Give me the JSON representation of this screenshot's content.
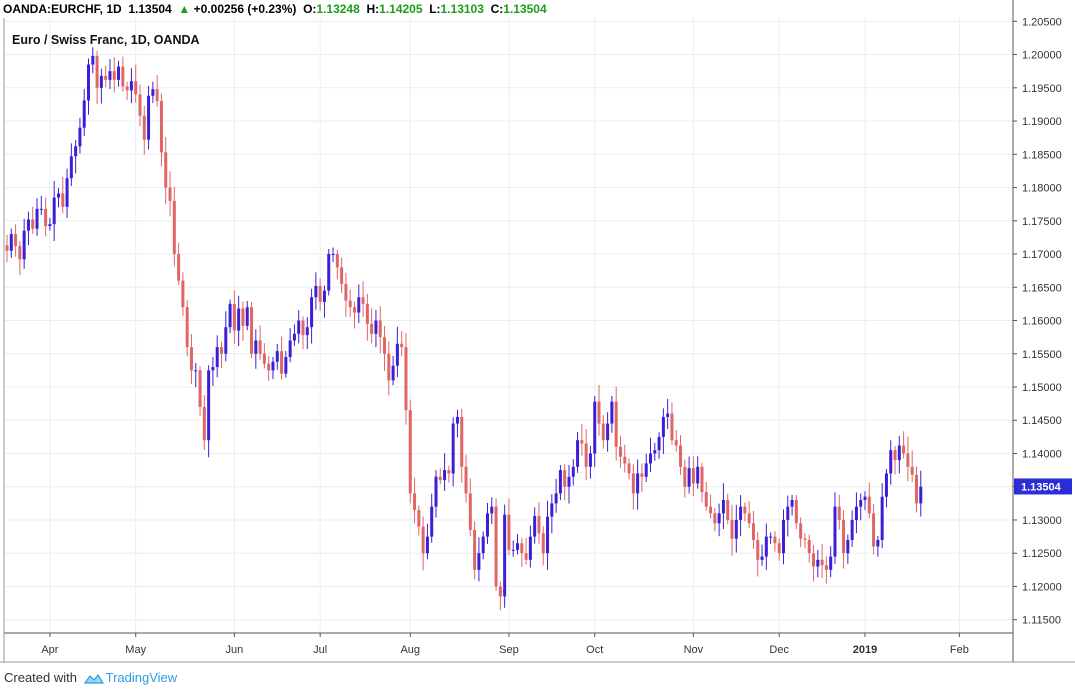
{
  "header": {
    "symbol": "OANDA:EURCHF, 1D",
    "last": "1.13504",
    "change": "+0.00256 (+0.23%)",
    "o_label": "O:",
    "o_value": "1.13248",
    "h_label": "H:",
    "h_value": "1.14205",
    "l_label": "L:",
    "l_value": "1.13103",
    "c_label": "C:",
    "c_value": "1.13504",
    "up_arrow_icon": "triangle-up-icon"
  },
  "footer": {
    "created_with": "Created with",
    "brand": "TradingView",
    "logo_icon": "tradingview-logo-icon"
  },
  "colors": {
    "up": "#3b1fd6",
    "down": "#e06666",
    "grid": "#e9eef3",
    "axis": "#555555",
    "last_price_bg": "#2b2dd8"
  },
  "chart_data": {
    "type": "candlestick",
    "title": "Euro / Swiss Franc, 1D, OANDA",
    "last_price_label": "1.13504",
    "ylim": [
      1.113,
      1.2055
    ],
    "y_ticks": [
      "1.20500",
      "1.20000",
      "1.19500",
      "1.19000",
      "1.18500",
      "1.18000",
      "1.17500",
      "1.17000",
      "1.16500",
      "1.16000",
      "1.15500",
      "1.15000",
      "1.14500",
      "1.14000",
      "1.13500",
      "1.13000",
      "1.12500",
      "1.12000",
      "1.11500"
    ],
    "x_ticks": [
      {
        "label": "Apr",
        "index": 10,
        "bold": false
      },
      {
        "label": "May",
        "index": 30,
        "bold": false
      },
      {
        "label": "Jun",
        "index": 53,
        "bold": false
      },
      {
        "label": "Jul",
        "index": 73,
        "bold": false
      },
      {
        "label": "Aug",
        "index": 94,
        "bold": false
      },
      {
        "label": "Sep",
        "index": 117,
        "bold": false
      },
      {
        "label": "Oct",
        "index": 137,
        "bold": false
      },
      {
        "label": "Nov",
        "index": 160,
        "bold": false
      },
      {
        "label": "Dec",
        "index": 180,
        "bold": false
      },
      {
        "label": "2019",
        "index": 200,
        "bold": true
      },
      {
        "label": "Feb",
        "index": 222,
        "bold": false
      }
    ],
    "grid": true,
    "close_series": [
      1.1705,
      1.173,
      1.1712,
      1.1692,
      1.1735,
      1.1752,
      1.1738,
      1.1768,
      1.1768,
      1.1742,
      1.1745,
      1.1785,
      1.1791,
      1.1771,
      1.1814,
      1.1847,
      1.1862,
      1.189,
      1.1931,
      1.1985,
      1.1998,
      1.195,
      1.1968,
      1.1962,
      1.1975,
      1.1962,
      1.1982,
      1.1952,
      1.1946,
      1.196,
      1.194,
      1.1908,
      1.1872,
      1.1938,
      1.1948,
      1.193,
      1.1853,
      1.18,
      1.178,
      1.17,
      1.166,
      1.162,
      1.156,
      1.1525,
      1.1525,
      1.147,
      1.142,
      1.1525,
      1.153,
      1.156,
      1.155,
      1.159,
      1.1625,
      1.1585,
      1.1618,
      1.1592,
      1.162,
      1.155,
      1.157,
      1.155,
      1.1535,
      1.1525,
      1.1538,
      1.1554,
      1.152,
      1.1545,
      1.157,
      1.158,
      1.16,
      1.1578,
      1.159,
      1.1635,
      1.1652,
      1.1628,
      1.1645,
      1.17,
      1.17,
      1.168,
      1.1655,
      1.163,
      1.162,
      1.1612,
      1.1635,
      1.1625,
      1.1595,
      1.158,
      1.16,
      1.1575,
      1.155,
      1.151,
      1.1532,
      1.1565,
      1.156,
      1.1465,
      1.134,
      1.1315,
      1.129,
      1.125,
      1.1275,
      1.132,
      1.1365,
      1.136,
      1.1375,
      1.137,
      1.1445,
      1.1455,
      1.138,
      1.134,
      1.1285,
      1.1225,
      1.125,
      1.1275,
      1.131,
      1.132,
      1.12,
      1.1185,
      1.1308,
      1.1255,
      1.1255,
      1.1265,
      1.125,
      1.124,
      1.1275,
      1.1306,
      1.128,
      1.125,
      1.1305,
      1.1325,
      1.134,
      1.1375,
      1.135,
      1.1365,
      1.138,
      1.142,
      1.1415,
      1.138,
      1.14,
      1.1478,
      1.1445,
      1.142,
      1.1445,
      1.1478,
      1.141,
      1.1395,
      1.1385,
      1.137,
      1.134,
      1.137,
      1.1365,
      1.1385,
      1.14,
      1.1405,
      1.1425,
      1.1455,
      1.146,
      1.142,
      1.1412,
      1.138,
      1.135,
      1.1378,
      1.1355,
      1.138,
      1.1342,
      1.132,
      1.131,
      1.1295,
      1.131,
      1.133,
      1.13,
      1.1272,
      1.13,
      1.132,
      1.131,
      1.1295,
      1.127,
      1.124,
      1.1245,
      1.1275,
      1.1275,
      1.1265,
      1.125,
      1.13,
      1.132,
      1.133,
      1.1295,
      1.1272,
      1.127,
      1.125,
      1.123,
      1.124,
      1.1232,
      1.1225,
      1.1245,
      1.132,
      1.13,
      1.125,
      1.127,
      1.13,
      1.132,
      1.133,
      1.1335,
      1.131,
      1.126,
      1.127,
      1.1335,
      1.137,
      1.1405,
      1.139,
      1.1412,
      1.14,
      1.138,
      1.1368,
      1.1325,
      1.135
    ]
  }
}
